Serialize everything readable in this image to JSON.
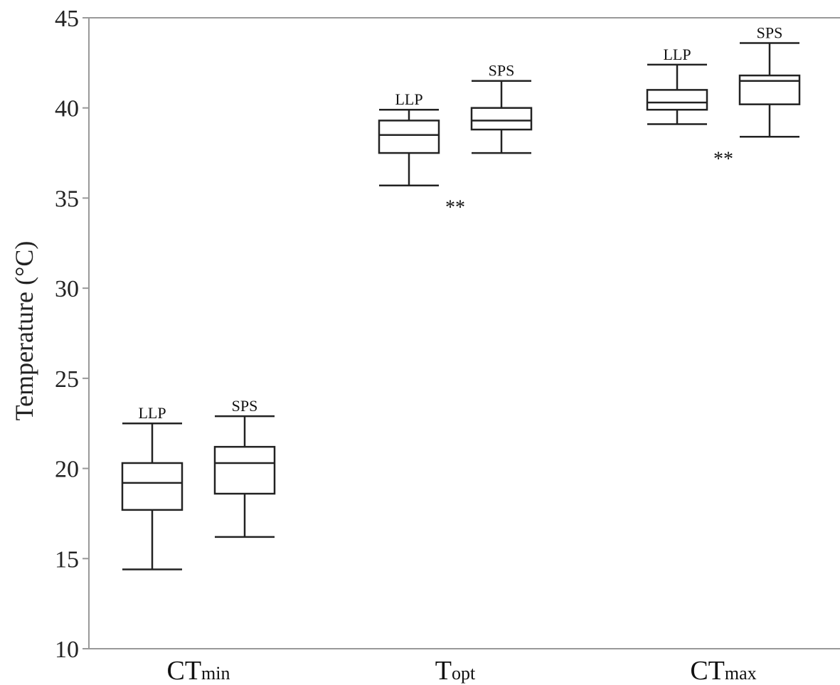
{
  "chart_data": {
    "type": "box",
    "ylabel": "Temperature (°C)",
    "ylim": [
      10,
      45
    ],
    "yticks": [
      10,
      15,
      20,
      25,
      30,
      35,
      40,
      45
    ],
    "grid": false,
    "categories": [
      {
        "main": "CT",
        "sub": "min"
      },
      {
        "main": "T",
        "sub": "opt"
      },
      {
        "main": "CT",
        "sub": "max"
      }
    ],
    "series": [
      "LLP",
      "SPS"
    ],
    "boxes": [
      {
        "category": 0,
        "series": "LLP",
        "min": 14.4,
        "q1": 17.7,
        "median": 19.2,
        "q3": 20.3,
        "max": 22.5
      },
      {
        "category": 0,
        "series": "SPS",
        "min": 16.2,
        "q1": 18.6,
        "median": 20.3,
        "q3": 21.2,
        "max": 22.9
      },
      {
        "category": 1,
        "series": "LLP",
        "min": 35.7,
        "q1": 37.5,
        "median": 38.5,
        "q3": 39.3,
        "max": 39.9
      },
      {
        "category": 1,
        "series": "SPS",
        "min": 37.5,
        "q1": 38.8,
        "median": 39.3,
        "q3": 40.0,
        "max": 41.5
      },
      {
        "category": 2,
        "series": "LLP",
        "min": 39.1,
        "q1": 39.9,
        "median": 40.3,
        "q3": 41.0,
        "max": 42.4
      },
      {
        "category": 2,
        "series": "SPS",
        "min": 38.4,
        "q1": 40.2,
        "median": 41.5,
        "q3": 41.8,
        "max": 43.6
      }
    ],
    "annotations": [
      {
        "category": 1,
        "text": "**"
      },
      {
        "category": 2,
        "text": "**"
      }
    ]
  }
}
